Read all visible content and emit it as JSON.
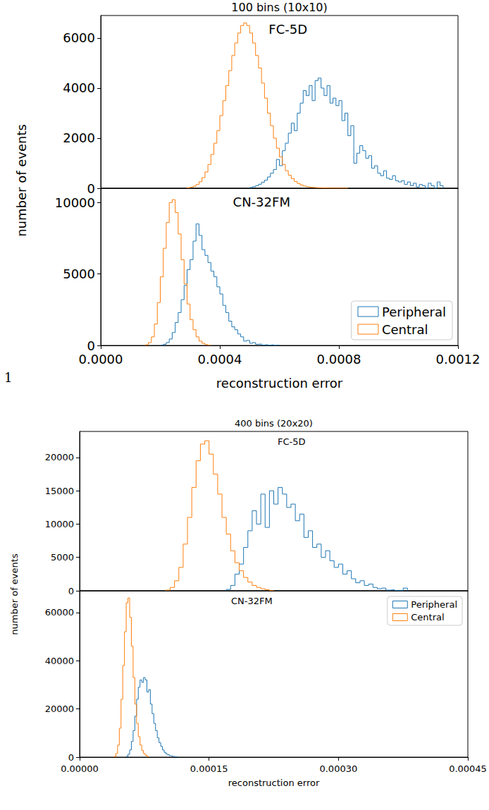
{
  "page_text": "1",
  "chart_data": [
    {
      "type": "histogram",
      "title": "100 bins (10x10)",
      "xlabel": "reconstruction error",
      "ylabel": "number of events",
      "xlim": [
        0,
        0.0012
      ],
      "xticks": [
        {
          "value": 0,
          "label": "0.0000"
        },
        {
          "value": 0.0004,
          "label": "0.0004"
        },
        {
          "value": 0.0008,
          "label": "0.0008"
        },
        {
          "value": 0.0012,
          "label": "0.0012"
        }
      ],
      "grid": false,
      "panels": [
        {
          "annotation": "FC-5D",
          "ylim": [
            0,
            6900
          ],
          "yticks": [
            0,
            2000,
            4000,
            6000
          ],
          "tick_labels": "y",
          "series": [
            {
              "name": "Peripheral",
              "color": "#1f77b4",
              "bins": [
                0.0005,
                0.00051,
                0.00052,
                0.00053,
                0.00054,
                0.00055,
                0.00056,
                0.00057,
                0.00058,
                0.00059,
                0.0006,
                0.00061,
                0.00062,
                0.00063,
                0.00064,
                0.00065,
                0.00066,
                0.00067,
                0.00068,
                0.00069,
                0.0007,
                0.00071,
                0.00072,
                0.00073,
                0.00074,
                0.00075,
                0.00076,
                0.00077,
                0.00078,
                0.00079,
                0.0008,
                0.00081,
                0.00082,
                0.00083,
                0.00084,
                0.00085,
                0.00086,
                0.00087,
                0.00088,
                0.00089,
                0.0009,
                0.00091,
                0.00092,
                0.00093,
                0.00094,
                0.00095,
                0.00096,
                0.00097,
                0.00098,
                0.00099,
                0.001,
                0.00101,
                0.00102,
                0.00103,
                0.00104,
                0.00105,
                0.00106,
                0.00107,
                0.00108,
                0.00109,
                0.0011,
                0.00111,
                0.00112,
                0.00113,
                0.00114,
                0.00115
              ],
              "values": [
                30,
                60,
                100,
                160,
                240,
                320,
                450,
                600,
                750,
                1150,
                900,
                1500,
                1800,
                2200,
                2600,
                2300,
                3000,
                3400,
                3900,
                3700,
                4100,
                3500,
                4300,
                4400,
                4000,
                3700,
                4100,
                3400,
                3600,
                3300,
                3500,
                2700,
                3000,
                2100,
                2500,
                1000,
                1400,
                1700,
                1500,
                1200,
                1300,
                800,
                900,
                600,
                500,
                700,
                400,
                350,
                500,
                300,
                250,
                300,
                150,
                250,
                100,
                200,
                50,
                150,
                100,
                0,
                200,
                100,
                0,
                250,
                100
              ]
            },
            {
              "name": "Central",
              "color": "#ff7f0e",
              "bins": [
                0.00029,
                0.0003,
                0.00031,
                0.00032,
                0.00033,
                0.00034,
                0.00035,
                0.00036,
                0.00037,
                0.00038,
                0.00039,
                0.0004,
                0.00041,
                0.00042,
                0.00043,
                0.00044,
                0.00045,
                0.00046,
                0.00047,
                0.00048,
                0.00049,
                0.0005,
                0.00051,
                0.00052,
                0.00053,
                0.00054,
                0.00055,
                0.00056,
                0.00057,
                0.00058,
                0.00059,
                0.0006,
                0.00061,
                0.00062,
                0.00063,
                0.00064,
                0.00065,
                0.00066,
                0.00067,
                0.00068,
                0.00069,
                0.0007,
                0.00071,
                0.00072,
                0.00073,
                0.00074,
                0.00075,
                0.00076,
                0.00077,
                0.00078,
                0.00079,
                0.0008,
                0.00081,
                0.00082,
                0.00083
              ],
              "values": [
                20,
                40,
                80,
                150,
                260,
                420,
                650,
                950,
                1350,
                1800,
                2300,
                2900,
                3500,
                4100,
                4700,
                5300,
                5800,
                6200,
                6500,
                6600,
                6500,
                6200,
                5800,
                5300,
                4800,
                4200,
                3600,
                3000,
                2500,
                2000,
                1600,
                1250,
                950,
                700,
                520,
                380,
                270,
                190,
                130,
                90,
                60,
                40,
                30,
                20,
                15,
                10,
                8,
                5,
                4,
                3,
                2,
                2,
                1,
                1
              ]
            }
          ]
        },
        {
          "annotation": "CN-32FM",
          "ylim": [
            0,
            11000
          ],
          "yticks": [
            0,
            5000,
            10000
          ],
          "legend": "lower right",
          "series": [
            {
              "name": "Peripheral",
              "color": "#1f77b4",
              "bins": [
                0.0002,
                0.00021,
                0.00022,
                0.00023,
                0.00024,
                0.00025,
                0.00026,
                0.00027,
                0.00028,
                0.00029,
                0.0003,
                0.00031,
                0.00032,
                0.00033,
                0.00034,
                0.00035,
                0.00036,
                0.00037,
                0.00038,
                0.00039,
                0.0004,
                0.00041,
                0.00042,
                0.00043,
                0.00044,
                0.00045,
                0.00046,
                0.00047,
                0.00048,
                0.00049,
                0.0005,
                0.00051,
                0.00052,
                0.00053,
                0.00054,
                0.00055,
                0.00056,
                0.00057,
                0.00058,
                0.00059,
                0.0006
              ],
              "values": [
                30,
                80,
                200,
                450,
                900,
                1600,
                2300,
                3200,
                4200,
                5300,
                6000,
                7300,
                8500,
                7700,
                6700,
                6300,
                5800,
                5200,
                4800,
                4100,
                3600,
                2800,
                2300,
                1700,
                1300,
                1100,
                800,
                600,
                300,
                350,
                150,
                200,
                80,
                100,
                30,
                60,
                20,
                50,
                10,
                20
              ]
            },
            {
              "name": "Central",
              "color": "#ff7f0e",
              "bins": [
                0.00015,
                0.00016,
                0.00017,
                0.00018,
                0.00019,
                0.0002,
                0.00021,
                0.00022,
                0.00023,
                0.00024,
                0.00025,
                0.00026,
                0.00027,
                0.00028,
                0.00029,
                0.0003,
                0.00031,
                0.00032,
                0.00033,
                0.00034,
                0.00035,
                0.00036,
                0.00037
              ],
              "values": [
                50,
                200,
                600,
                1500,
                3000,
                4800,
                6800,
                8600,
                10000,
                10200,
                9300,
                7800,
                6000,
                4300,
                2900,
                1800,
                1100,
                600,
                300,
                150,
                60,
                20
              ]
            }
          ]
        }
      ]
    },
    {
      "type": "histogram",
      "title": "400 bins (20x20)",
      "xlabel": "reconstruction error",
      "ylabel": "number of events",
      "xlim": [
        0,
        0.00045
      ],
      "xticks": [
        {
          "value": 0,
          "label": "0.00000"
        },
        {
          "value": 0.00015,
          "label": "0.00015"
        },
        {
          "value": 0.0003,
          "label": "0.00030"
        },
        {
          "value": 0.00045,
          "label": "0.00045"
        }
      ],
      "grid": false,
      "panels": [
        {
          "annotation": "FC-5D",
          "ylim": [
            0,
            23900
          ],
          "yticks": [
            0,
            5000,
            10000,
            15000,
            20000
          ],
          "tick_labels": "y",
          "series": [
            {
              "name": "Peripheral",
              "color": "#1f77b4",
              "bins": [
                0.00017,
                0.000175,
                0.00018,
                0.000185,
                0.00019,
                0.000195,
                0.0002,
                0.000205,
                0.00021,
                0.000215,
                0.00022,
                0.000225,
                0.00023,
                0.000235,
                0.00024,
                0.000245,
                0.00025,
                0.000255,
                0.00026,
                0.000265,
                0.00027,
                0.000275,
                0.00028,
                0.000285,
                0.00029,
                0.000295,
                0.0003,
                0.000305,
                0.00031,
                0.000315,
                0.00032,
                0.000325,
                0.00033,
                0.000335,
                0.00034,
                0.000345,
                0.00035,
                0.000355,
                0.00036,
                0.000365,
                0.00037,
                0.000375,
                0.00038
              ],
              "values": [
                200,
                800,
                2500,
                4000,
                6500,
                9000,
                12000,
                10000,
                14500,
                9500,
                15000,
                13000,
                15500,
                14500,
                12500,
                13000,
                10500,
                11500,
                8000,
                9000,
                6500,
                7000,
                5000,
                6000,
                4500,
                3500,
                4000,
                2500,
                3000,
                1800,
                1200,
                1500,
                800,
                1000,
                500,
                300,
                400,
                100,
                150,
                50,
                0,
                400
              ]
            },
            {
              "name": "Central",
              "color": "#ff7f0e",
              "bins": [
                0.0001,
                0.000105,
                0.00011,
                0.000115,
                0.00012,
                0.000125,
                0.00013,
                0.000135,
                0.00014,
                0.000145,
                0.00015,
                0.000155,
                0.00016,
                0.000165,
                0.00017,
                0.000175,
                0.00018,
                0.000185,
                0.00019,
                0.000195,
                0.0002,
                0.000205,
                0.00021,
                0.000215,
                0.00022,
                0.000225
              ],
              "values": [
                100,
                500,
                1500,
                3500,
                7000,
                11000,
                15500,
                19500,
                22000,
                22500,
                20500,
                17500,
                14500,
                11000,
                8500,
                6000,
                4200,
                3000,
                2000,
                1300,
                800,
                500,
                300,
                150,
                60
              ]
            }
          ]
        },
        {
          "annotation": "CN-32FM",
          "ylim": [
            0,
            69000
          ],
          "yticks": [
            0,
            20000,
            40000,
            60000
          ],
          "legend": "upper right",
          "series": [
            {
              "name": "Peripheral",
              "color": "#1f77b4",
              "bins": [
                5.4e-05,
                5.6e-05,
                5.8e-05,
                6e-05,
                6.2e-05,
                6.4e-05,
                6.6e-05,
                6.8e-05,
                7e-05,
                7.2e-05,
                7.4e-05,
                7.6e-05,
                7.8e-05,
                8e-05,
                8.2e-05,
                8.4e-05,
                8.6e-05,
                8.8e-05,
                9e-05,
                9.2e-05,
                9.4e-05,
                9.6e-05,
                9.8e-05,
                0.0001,
                0.000102,
                0.000104,
                0.000106,
                0.000108,
                0.00011,
                0.000112,
                0.000114
              ],
              "values": [
                300,
                1200,
                3000,
                6500,
                11000,
                17000,
                24000,
                29000,
                32000,
                31000,
                33000,
                32000,
                27000,
                28000,
                22000,
                18000,
                14000,
                11000,
                8000,
                6000,
                4500,
                3000,
                2000,
                1300,
                1000,
                600,
                400,
                250,
                150,
                80
              ]
            },
            {
              "name": "Central",
              "color": "#ff7f0e",
              "bins": [
                4e-05,
                4.2e-05,
                4.4e-05,
                4.6e-05,
                4.8e-05,
                5e-05,
                5.2e-05,
                5.4e-05,
                5.6e-05,
                5.8e-05,
                6e-05,
                6.2e-05,
                6.4e-05,
                6.6e-05,
                6.8e-05,
                7e-05,
                7.2e-05,
                7.4e-05,
                7.6e-05,
                7.8e-05,
                8e-05
              ],
              "values": [
                300,
                1500,
                5000,
                12000,
                24000,
                38000,
                52000,
                64000,
                66000,
                58000,
                46000,
                33000,
                22000,
                14000,
                8500,
                5000,
                2800,
                1500,
                800,
                300
              ]
            }
          ]
        }
      ]
    }
  ]
}
